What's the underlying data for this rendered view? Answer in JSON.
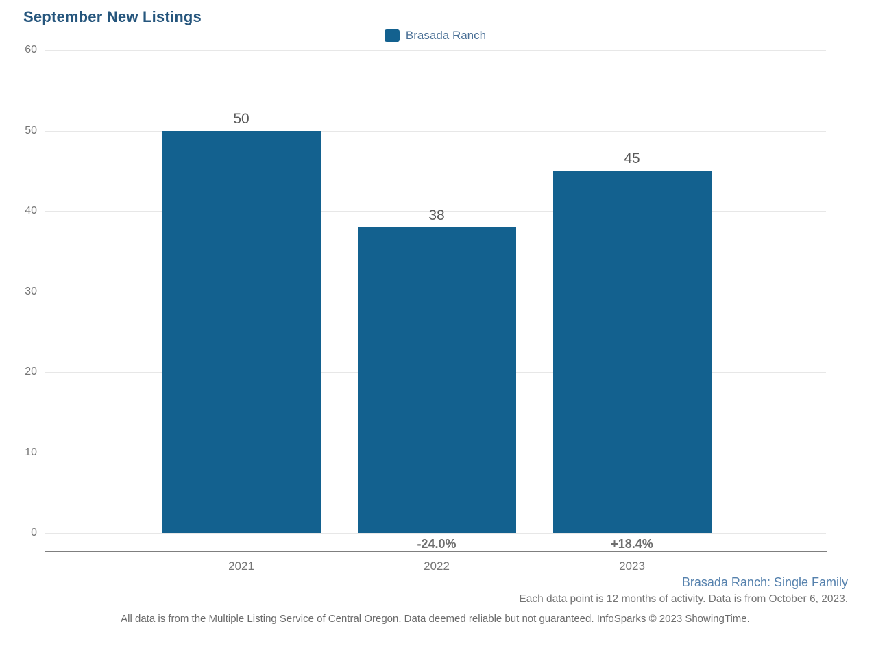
{
  "title": "September New Listings",
  "legend": {
    "label": "Brasada Ranch",
    "swatch_color": "#13618f"
  },
  "chart_data": {
    "type": "bar",
    "title": "September New Listings",
    "categories": [
      "2021",
      "2022",
      "2023"
    ],
    "values": [
      50,
      38,
      45
    ],
    "bar_value_labels": [
      "50",
      "38",
      "45"
    ],
    "pct_change_labels": [
      "",
      "-24.0%",
      "+18.4%"
    ],
    "series": [
      {
        "name": "Brasada Ranch",
        "values": [
          50,
          38,
          45
        ]
      }
    ],
    "xlabel": "",
    "ylabel": "",
    "ylim": [
      0,
      60
    ],
    "yticks": [
      0,
      10,
      20,
      30,
      40,
      50,
      60
    ],
    "grid": true,
    "legend_position": "top-center",
    "bar_color": "#13618f"
  },
  "footer": {
    "series_note": "Brasada Ranch: Single Family",
    "data_note": "Each data point is 12 months of activity. Data is from October 6, 2023.",
    "disclaimer": "All data is from the Multiple Listing Service of Central Oregon. Data deemed reliable but not guaranteed. InfoSparks © 2023 ShowingTime."
  },
  "colors": {
    "title": "#26567d",
    "bar": "#13618f",
    "gridline": "#e7e7e7",
    "axis_line": "#7f7f7f",
    "tick_label": "#757575",
    "value_label": "#595959",
    "pct_label": "#6e6e6e",
    "series_note": "#5581ad",
    "footnote": "#6b6b6b"
  }
}
